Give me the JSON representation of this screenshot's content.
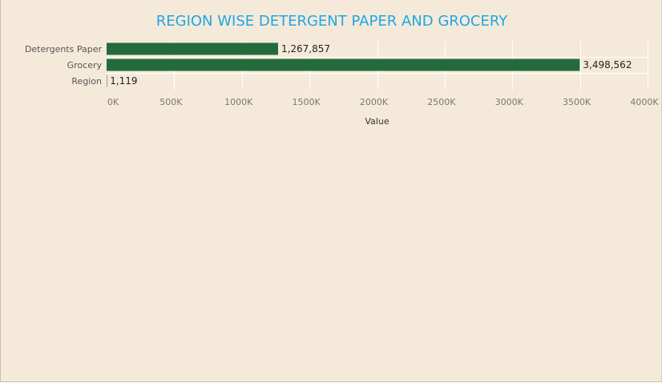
{
  "chart_data": {
    "type": "bar",
    "orientation": "horizontal",
    "title": "REGION WISE DETERGENT PAPER AND GROCERY",
    "categories": [
      "Detergents Paper",
      "Grocery",
      "Region"
    ],
    "values": [
      1267857,
      3498562,
      1119
    ],
    "data_labels": [
      "1,267,857",
      "3,498,562",
      "1,119"
    ],
    "xlabel": "Value",
    "ylabel": "",
    "xlim": [
      0,
      4000000
    ],
    "ticks": [
      0,
      500000,
      1000000,
      1500000,
      2000000,
      2500000,
      3000000,
      3500000,
      4000000
    ],
    "tick_labels": [
      "0K",
      "500K",
      "1000K",
      "1500K",
      "2000K",
      "2500K",
      "3000K",
      "3500K",
      "4000K"
    ],
    "grid": true,
    "legend": "none",
    "colors": {
      "bar": "#236b3b",
      "title": "#1ea7e6",
      "background": "#f5ead9",
      "grid": "#ffffff"
    }
  }
}
